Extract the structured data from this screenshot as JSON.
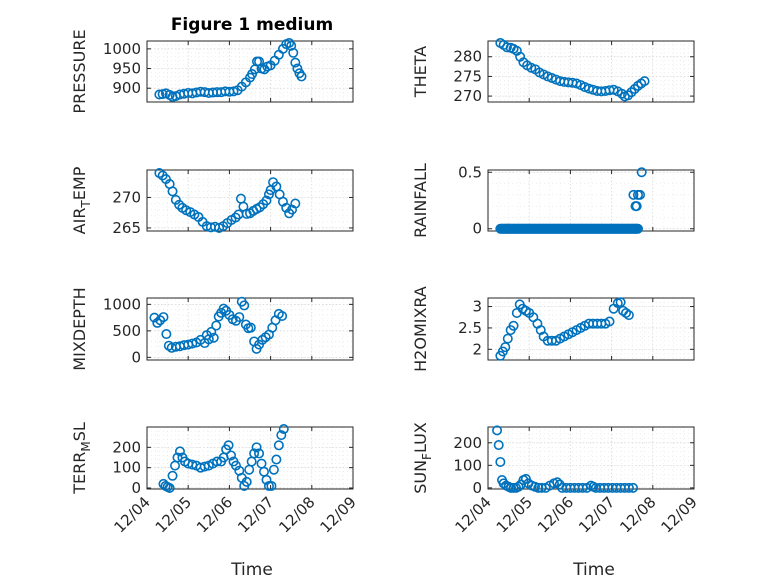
{
  "figure": {
    "title": "Figure 1 medium",
    "xlabel_left": "Time",
    "xlabel_right": "Time",
    "marker_color": "#0072bd"
  },
  "chart_data": [
    {
      "type": "scatter",
      "key": "pressure",
      "ylabel": "PRESSURE",
      "ylabel_sub": null,
      "title": "Figure 1 medium",
      "xlim": [
        "12/04",
        "12/09"
      ],
      "ylim": [
        865,
        1020
      ],
      "yticks": [
        900,
        950,
        1000
      ],
      "xticks": [
        "12/04",
        "12/05",
        "12/06",
        "12/07",
        "12/08",
        "12/09"
      ],
      "grid": true,
      "show_xticklabels": false,
      "points": [
        [
          4.3,
          884
        ],
        [
          4.38,
          885
        ],
        [
          4.46,
          887
        ],
        [
          4.55,
          883
        ],
        [
          4.62,
          878
        ],
        [
          4.7,
          880
        ],
        [
          4.8,
          884
        ],
        [
          4.9,
          886
        ],
        [
          5.0,
          888
        ],
        [
          5.1,
          887
        ],
        [
          5.2,
          889
        ],
        [
          5.3,
          891
        ],
        [
          5.4,
          890
        ],
        [
          5.5,
          888
        ],
        [
          5.6,
          889
        ],
        [
          5.7,
          890
        ],
        [
          5.8,
          890
        ],
        [
          5.9,
          892
        ],
        [
          6.0,
          891
        ],
        [
          6.1,
          892
        ],
        [
          6.2,
          895
        ],
        [
          6.3,
          904
        ],
        [
          6.4,
          915
        ],
        [
          6.5,
          927
        ],
        [
          6.55,
          936
        ],
        [
          6.62,
          948
        ],
        [
          6.67,
          968
        ],
        [
          6.72,
          968
        ],
        [
          6.78,
          950
        ],
        [
          6.85,
          948
        ],
        [
          6.92,
          955
        ],
        [
          7.0,
          958
        ],
        [
          7.1,
          970
        ],
        [
          7.2,
          985
        ],
        [
          7.3,
          1000
        ],
        [
          7.38,
          1012
        ],
        [
          7.45,
          1015
        ],
        [
          7.5,
          1008
        ],
        [
          7.55,
          990
        ],
        [
          7.6,
          965
        ],
        [
          7.65,
          950
        ],
        [
          7.7,
          938
        ],
        [
          7.75,
          930
        ]
      ]
    },
    {
      "type": "scatter",
      "key": "theta",
      "ylabel": "THETA",
      "ylabel_sub": null,
      "xlim": [
        "12/04",
        "12/09"
      ],
      "ylim": [
        268.5,
        284
      ],
      "yticks": [
        270,
        275,
        280
      ],
      "xticks": [
        "12/04",
        "12/05",
        "12/06",
        "12/07",
        "12/08",
        "12/09"
      ],
      "grid": true,
      "show_xticklabels": false,
      "points": [
        [
          4.3,
          283.5
        ],
        [
          4.38,
          283
        ],
        [
          4.46,
          282.4
        ],
        [
          4.55,
          282.3
        ],
        [
          4.62,
          282
        ],
        [
          4.7,
          281.5
        ],
        [
          4.78,
          280
        ],
        [
          4.86,
          278.6
        ],
        [
          4.95,
          277.8
        ],
        [
          5.05,
          277.2
        ],
        [
          5.15,
          276.8
        ],
        [
          5.25,
          276
        ],
        [
          5.35,
          275.5
        ],
        [
          5.45,
          275
        ],
        [
          5.55,
          274.6
        ],
        [
          5.65,
          274.2
        ],
        [
          5.75,
          273.8
        ],
        [
          5.85,
          273.6
        ],
        [
          5.95,
          273.5
        ],
        [
          6.05,
          273.4
        ],
        [
          6.15,
          273.2
        ],
        [
          6.25,
          272.8
        ],
        [
          6.35,
          272.3
        ],
        [
          6.45,
          271.9
        ],
        [
          6.55,
          271.6
        ],
        [
          6.65,
          271.3
        ],
        [
          6.75,
          271.2
        ],
        [
          6.85,
          271.3
        ],
        [
          6.95,
          271.5
        ],
        [
          7.05,
          271.6
        ],
        [
          7.15,
          271.2
        ],
        [
          7.25,
          270.6
        ],
        [
          7.32,
          269.9
        ],
        [
          7.4,
          270.2
        ],
        [
          7.48,
          271.0
        ],
        [
          7.56,
          271.8
        ],
        [
          7.64,
          272.6
        ],
        [
          7.72,
          273.2
        ],
        [
          7.8,
          273.8
        ]
      ]
    },
    {
      "type": "scatter",
      "key": "air_temp",
      "ylabel": "AIR",
      "ylabel_sub": "T",
      "ylabel_rest": "EMP",
      "xlim": [
        "12/04",
        "12/09"
      ],
      "ylim": [
        264.5,
        274.5
      ],
      "yticks": [
        265,
        270
      ],
      "xticks": [
        "12/04",
        "12/05",
        "12/06",
        "12/07",
        "12/08",
        "12/09"
      ],
      "grid": true,
      "show_xticklabels": false,
      "points": [
        [
          4.3,
          274
        ],
        [
          4.38,
          273.6
        ],
        [
          4.46,
          273
        ],
        [
          4.55,
          272.2
        ],
        [
          4.62,
          271
        ],
        [
          4.7,
          269.6
        ],
        [
          4.78,
          268.8
        ],
        [
          4.86,
          268.3
        ],
        [
          4.95,
          267.9
        ],
        [
          5.05,
          267.6
        ],
        [
          5.15,
          267.2
        ],
        [
          5.25,
          266.8
        ],
        [
          5.35,
          266
        ],
        [
          5.45,
          265.3
        ],
        [
          5.55,
          265.1
        ],
        [
          5.65,
          265.2
        ],
        [
          5.75,
          265.0
        ],
        [
          5.85,
          265.3
        ],
        [
          5.95,
          265.8
        ],
        [
          6.05,
          266.3
        ],
        [
          6.15,
          266.7
        ],
        [
          6.22,
          267.2
        ],
        [
          6.28,
          269.8
        ],
        [
          6.34,
          268.5
        ],
        [
          6.42,
          267.3
        ],
        [
          6.5,
          267.4
        ],
        [
          6.58,
          267.8
        ],
        [
          6.66,
          268.1
        ],
        [
          6.74,
          268.4
        ],
        [
          6.82,
          268.9
        ],
        [
          6.9,
          269.5
        ],
        [
          6.96,
          270.5
        ],
        [
          7.0,
          271.2
        ],
        [
          7.06,
          272.5
        ],
        [
          7.14,
          271.8
        ],
        [
          7.22,
          270.5
        ],
        [
          7.3,
          269.3
        ],
        [
          7.38,
          268.3
        ],
        [
          7.45,
          267.4
        ],
        [
          7.52,
          268.0
        ],
        [
          7.6,
          269.0
        ]
      ]
    },
    {
      "type": "scatter",
      "key": "rainfall",
      "ylabel": "RAINFALL",
      "ylabel_sub": null,
      "xlim": [
        "12/04",
        "12/09"
      ],
      "ylim": [
        -0.02,
        0.52
      ],
      "yticks": [
        0,
        0.5
      ],
      "xticks": [
        "12/04",
        "12/05",
        "12/06",
        "12/07",
        "12/08",
        "12/09"
      ],
      "grid": true,
      "show_xticklabels": false,
      "points_zero_from": 4.3,
      "points_zero_to": 7.65,
      "points": [
        [
          7.53,
          0.3
        ],
        [
          7.58,
          0.2
        ],
        [
          7.61,
          0.2
        ],
        [
          7.64,
          0.3
        ],
        [
          7.69,
          0.3
        ],
        [
          7.73,
          0.5
        ]
      ]
    },
    {
      "type": "scatter",
      "key": "mixdepth",
      "ylabel": "MIXDEPTH",
      "ylabel_sub": null,
      "xlim": [
        "12/04",
        "12/09"
      ],
      "ylim": [
        -50,
        1120
      ],
      "yticks": [
        0,
        500,
        1000
      ],
      "xticks": [
        "12/04",
        "12/05",
        "12/06",
        "12/07",
        "12/08",
        "12/09"
      ],
      "grid": true,
      "show_xticklabels": false,
      "points": [
        [
          4.18,
          750
        ],
        [
          4.25,
          650
        ],
        [
          4.32,
          700
        ],
        [
          4.4,
          760
        ],
        [
          4.47,
          440
        ],
        [
          4.53,
          220
        ],
        [
          4.6,
          180
        ],
        [
          4.7,
          200
        ],
        [
          4.8,
          210
        ],
        [
          4.9,
          230
        ],
        [
          5.0,
          240
        ],
        [
          5.1,
          260
        ],
        [
          5.2,
          280
        ],
        [
          5.3,
          330
        ],
        [
          5.4,
          270
        ],
        [
          5.45,
          420
        ],
        [
          5.5,
          340
        ],
        [
          5.56,
          480
        ],
        [
          5.62,
          370
        ],
        [
          5.68,
          600
        ],
        [
          5.74,
          770
        ],
        [
          5.8,
          840
        ],
        [
          5.86,
          920
        ],
        [
          5.92,
          880
        ],
        [
          6.0,
          800
        ],
        [
          6.08,
          720
        ],
        [
          6.16,
          690
        ],
        [
          6.24,
          760
        ],
        [
          6.3,
          1050
        ],
        [
          6.36,
          980
        ],
        [
          6.4,
          620
        ],
        [
          6.46,
          550
        ],
        [
          6.52,
          560
        ],
        [
          6.6,
          300
        ],
        [
          6.66,
          160
        ],
        [
          6.72,
          240
        ],
        [
          6.8,
          330
        ],
        [
          6.88,
          380
        ],
        [
          6.96,
          430
        ],
        [
          7.04,
          560
        ],
        [
          7.12,
          700
        ],
        [
          7.2,
          820
        ],
        [
          7.28,
          780
        ]
      ]
    },
    {
      "type": "scatter",
      "key": "h2omixra",
      "ylabel": "H2OMIXRA",
      "ylabel_sub": null,
      "xlim": [
        "12/04",
        "12/09"
      ],
      "ylim": [
        1.75,
        3.2
      ],
      "yticks": [
        2,
        2.5,
        3
      ],
      "xticks": [
        "12/04",
        "12/05",
        "12/06",
        "12/07",
        "12/08",
        "12/09"
      ],
      "grid": true,
      "show_xticklabels": false,
      "points": [
        [
          4.3,
          1.85
        ],
        [
          4.36,
          1.95
        ],
        [
          4.42,
          2.05
        ],
        [
          4.48,
          2.25
        ],
        [
          4.55,
          2.45
        ],
        [
          4.62,
          2.55
        ],
        [
          4.7,
          2.85
        ],
        [
          4.77,
          3.05
        ],
        [
          4.84,
          2.95
        ],
        [
          4.92,
          2.9
        ],
        [
          5.0,
          2.85
        ],
        [
          5.1,
          2.75
        ],
        [
          5.2,
          2.6
        ],
        [
          5.28,
          2.45
        ],
        [
          5.35,
          2.3
        ],
        [
          5.45,
          2.2
        ],
        [
          5.55,
          2.2
        ],
        [
          5.65,
          2.2
        ],
        [
          5.75,
          2.25
        ],
        [
          5.85,
          2.3
        ],
        [
          5.95,
          2.35
        ],
        [
          6.05,
          2.4
        ],
        [
          6.15,
          2.45
        ],
        [
          6.25,
          2.5
        ],
        [
          6.35,
          2.55
        ],
        [
          6.45,
          2.6
        ],
        [
          6.55,
          2.6
        ],
        [
          6.65,
          2.6
        ],
        [
          6.75,
          2.6
        ],
        [
          6.85,
          2.6
        ],
        [
          6.95,
          2.65
        ],
        [
          7.05,
          2.95
        ],
        [
          7.15,
          3.08
        ],
        [
          7.22,
          3.1
        ],
        [
          7.28,
          2.9
        ],
        [
          7.35,
          2.85
        ],
        [
          7.42,
          2.8
        ]
      ]
    },
    {
      "type": "scatter",
      "key": "terr_msl",
      "ylabel": "TERR",
      "ylabel_sub": "M",
      "ylabel_rest": "SL",
      "xlim": [
        "12/04",
        "12/09"
      ],
      "ylim": [
        -5,
        300
      ],
      "yticks": [
        0,
        100,
        200
      ],
      "xticks": [
        "12/04",
        "12/05",
        "12/06",
        "12/07",
        "12/08",
        "12/09"
      ],
      "grid": true,
      "show_xticklabels": true,
      "points": [
        [
          4.4,
          20
        ],
        [
          4.45,
          10
        ],
        [
          4.5,
          5
        ],
        [
          4.55,
          0
        ],
        [
          4.62,
          60
        ],
        [
          4.68,
          110
        ],
        [
          4.74,
          150
        ],
        [
          4.8,
          180
        ],
        [
          4.86,
          150
        ],
        [
          4.92,
          130
        ],
        [
          5.0,
          120
        ],
        [
          5.1,
          115
        ],
        [
          5.2,
          110
        ],
        [
          5.3,
          100
        ],
        [
          5.4,
          105
        ],
        [
          5.5,
          110
        ],
        [
          5.6,
          120
        ],
        [
          5.7,
          130
        ],
        [
          5.8,
          130
        ],
        [
          5.86,
          150
        ],
        [
          5.92,
          190
        ],
        [
          5.98,
          210
        ],
        [
          6.04,
          160
        ],
        [
          6.1,
          130
        ],
        [
          6.16,
          110
        ],
        [
          6.24,
          85
        ],
        [
          6.3,
          50
        ],
        [
          6.36,
          10
        ],
        [
          6.42,
          30
        ],
        [
          6.48,
          90
        ],
        [
          6.54,
          130
        ],
        [
          6.6,
          170
        ],
        [
          6.66,
          200
        ],
        [
          6.72,
          170
        ],
        [
          6.78,
          120
        ],
        [
          6.84,
          80
        ],
        [
          6.9,
          40
        ],
        [
          6.96,
          10
        ],
        [
          7.02,
          10
        ],
        [
          7.08,
          90
        ],
        [
          7.14,
          140
        ],
        [
          7.2,
          210
        ],
        [
          7.26,
          260
        ],
        [
          7.32,
          290
        ]
      ]
    },
    {
      "type": "scatter",
      "key": "sun_flux",
      "ylabel": "SUN",
      "ylabel_sub": "F",
      "ylabel_rest": "LUX",
      "xlim": [
        "12/04",
        "12/09"
      ],
      "ylim": [
        -5,
        270
      ],
      "yticks": [
        0,
        100,
        200
      ],
      "xticks": [
        "12/04",
        "12/05",
        "12/06",
        "12/07",
        "12/08",
        "12/09"
      ],
      "grid": true,
      "show_xticklabels": true,
      "points": [
        [
          4.22,
          255
        ],
        [
          4.26,
          190
        ],
        [
          4.3,
          115
        ],
        [
          4.34,
          35
        ],
        [
          4.38,
          20
        ],
        [
          4.44,
          10
        ],
        [
          4.5,
          5
        ],
        [
          4.56,
          0
        ],
        [
          4.62,
          0
        ],
        [
          4.68,
          0
        ],
        [
          4.74,
          5
        ],
        [
          4.8,
          15
        ],
        [
          4.86,
          35
        ],
        [
          4.92,
          40
        ],
        [
          4.98,
          20
        ],
        [
          5.06,
          10
        ],
        [
          5.14,
          5
        ],
        [
          5.22,
          0
        ],
        [
          5.3,
          0
        ],
        [
          5.4,
          0
        ],
        [
          5.5,
          10
        ],
        [
          5.6,
          20
        ],
        [
          5.68,
          25
        ],
        [
          5.74,
          15
        ],
        [
          5.8,
          0
        ],
        [
          5.9,
          0
        ],
        [
          6.0,
          0
        ],
        [
          6.1,
          0
        ],
        [
          6.2,
          0
        ],
        [
          6.3,
          0
        ],
        [
          6.4,
          0
        ],
        [
          6.5,
          10
        ],
        [
          6.56,
          5
        ],
        [
          6.62,
          0
        ],
        [
          6.72,
          0
        ],
        [
          6.82,
          0
        ],
        [
          6.92,
          0
        ],
        [
          7.02,
          0
        ],
        [
          7.12,
          0
        ],
        [
          7.22,
          0
        ],
        [
          7.32,
          0
        ],
        [
          7.42,
          0
        ],
        [
          7.52,
          0
        ]
      ]
    }
  ]
}
